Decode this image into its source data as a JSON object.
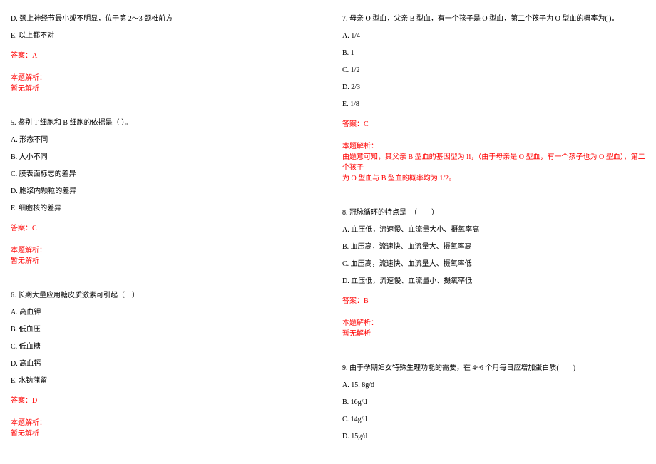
{
  "left": {
    "q4_optD": "D. 颈上神经节最小或不明显，位于第 2～3 颈椎前方",
    "q4_optE": "E. 以上都不对",
    "q4_answer": "答案：A",
    "q4_expl_title": "本题解析：",
    "q4_expl_body": "暂无解析",
    "q5_stem": "5. 鉴别 T 细胞和 B 细胞的依据是（ ）。",
    "q5_optA": "A. 形态不同",
    "q5_optB": "B. 大小不同",
    "q5_optC": "C. 膜表面标志的差异",
    "q5_optD": "D. 胞浆内颗粒的差异",
    "q5_optE": "E. 细胞核的差异",
    "q5_answer": "答案：C",
    "q5_expl_title": "本题解析：",
    "q5_expl_body": "暂无解析",
    "q6_stem": "6. 长期大量应用糖皮质激素可引起（　）",
    "q6_optA": "A. 高血钾",
    "q6_optB": "B. 低血压",
    "q6_optC": "C. 低血糖",
    "q6_optD": "D. 高血钙",
    "q6_optE": "E. 水钠潴留",
    "q6_answer": "答案：D",
    "q6_expl_title": "本题解析：",
    "q6_expl_body": "暂无解析"
  },
  "right": {
    "q7_stem": "7. 母亲 O 型血，父亲 B 型血，有一个孩子是 O 型血，第二个孩子为 O 型血的概率为( )。",
    "q7_optA": "A. 1/4",
    "q7_optB": "B. 1",
    "q7_optC": "C. 1/2",
    "q7_optD": "D. 2/3",
    "q7_optE": "E. 1/8",
    "q7_answer": "答案：C",
    "q7_expl_title": "本题解析：",
    "q7_expl_body1": "由题意可知，其父亲 B 型血的基因型为 Ii，（由于母亲是 O 型血，有一个孩子也为 O 型血），第二个孩子",
    "q7_expl_body2": "为 O 型血与 B 型血的概率均为 1/2。",
    "q8_stem": "8. 冠脉循环的特点是　（　　）",
    "q8_optA": "A. 血压低，流速慢、血流量大小、摄氧率高",
    "q8_optB": "B. 血压高，流速快、血流量大、摄氧率高",
    "q8_optC": "C. 血压高，流速快、血流量大、摄氧率低",
    "q8_optD": "D. 血压低，流速慢、血流量小、摄氧率低",
    "q8_answer": "答案：B",
    "q8_expl_title": "本题解析：",
    "q8_expl_body": "暂无解析",
    "q9_stem": "9. 由于孕期妇女特殊生理功能的需要，在 4~6 个月每日应增加蛋白质(　　)",
    "q9_optA": "A. 15. 8g/d",
    "q9_optB": "B. 16g/d",
    "q9_optC": "C. 14g/d",
    "q9_optD": "D. 15g/d"
  }
}
